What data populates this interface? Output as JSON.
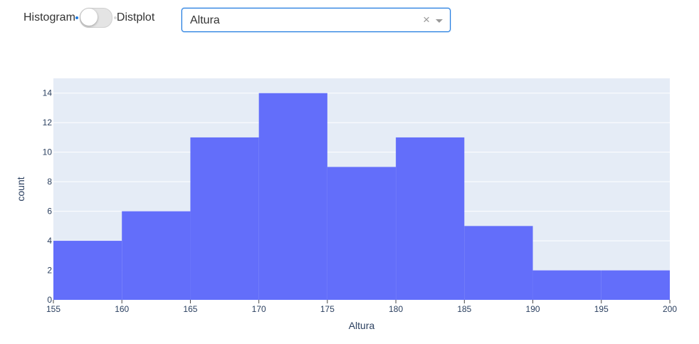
{
  "controls": {
    "toggle": {
      "left_label": "Histogram",
      "right_label": "Distplot",
      "state": "off"
    },
    "select": {
      "value": "Altura",
      "clear_symbol": "×"
    }
  },
  "colors": {
    "plot_bg": "#e5ecf6",
    "bar": "#636efa",
    "grid": "#ffffff",
    "accent": "#1f7ae0"
  },
  "chart_data": {
    "type": "bar",
    "subtype": "histogram",
    "xlabel": "Altura",
    "ylabel": "count",
    "xlim": [
      155,
      200
    ],
    "ylim": [
      0,
      15
    ],
    "bin_width": 5,
    "bins": [
      {
        "start": 155,
        "end": 160,
        "count": 4
      },
      {
        "start": 160,
        "end": 165,
        "count": 6
      },
      {
        "start": 165,
        "end": 170,
        "count": 11
      },
      {
        "start": 170,
        "end": 175,
        "count": 14
      },
      {
        "start": 175,
        "end": 180,
        "count": 9
      },
      {
        "start": 180,
        "end": 185,
        "count": 11
      },
      {
        "start": 185,
        "end": 190,
        "count": 5
      },
      {
        "start": 190,
        "end": 195,
        "count": 2
      },
      {
        "start": 195,
        "end": 200,
        "count": 2
      }
    ],
    "x_ticks": [
      155,
      160,
      165,
      170,
      175,
      180,
      185,
      190,
      195,
      200
    ],
    "y_ticks": [
      0,
      2,
      4,
      6,
      8,
      10,
      12,
      14
    ],
    "grid": true,
    "legend": "none"
  }
}
